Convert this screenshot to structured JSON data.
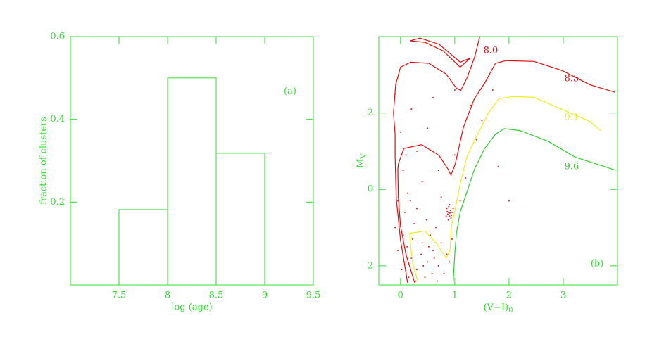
{
  "chart_data": [
    {
      "type": "histogram",
      "xlabel": "log (age)",
      "ylabel": "fraction of clusters",
      "panel_label": "(a)",
      "bins": [
        7.5,
        8,
        8.5,
        9
      ],
      "values": [
        0.182,
        0.5,
        0.318
      ],
      "color": "#33dd33",
      "xlim": [
        7,
        9.5
      ],
      "xticks": [
        7.5,
        8,
        8.5,
        9,
        9.5
      ],
      "ylim": [
        0,
        0.6
      ],
      "yticks": [
        0.2,
        0.4,
        0.6
      ]
    },
    {
      "type": "line",
      "xlabel": {
        "text": "(V−I)",
        "sub": "0"
      },
      "ylabel": {
        "text": "M",
        "sub": "V"
      },
      "panel_label": "(b)",
      "xlim": [
        -0.4,
        4
      ],
      "xticks": [
        0,
        1,
        2,
        3
      ],
      "ylim": [
        2.5,
        -4
      ],
      "yticks": [
        -2,
        0,
        2
      ],
      "series": [
        {
          "name": "8.0",
          "color": "#dd1111",
          "x": [
            0.13,
            0,
            -0.08,
            -0.1,
            -0.1,
            -0.13,
            -0.09,
            0,
            0.19,
            0.52,
            0.84,
            1.03,
            1.11,
            1.23,
            1.37,
            1.46,
            null,
            0.18,
            0.45,
            0.78,
            1.1,
            1.29,
            1.1,
            0.71,
            0.36,
            0.18
          ],
          "y": [
            2.44,
            1.33,
            0.22,
            -0.89,
            -1.44,
            -2.0,
            -2.74,
            -3.2,
            -3.33,
            -3.3,
            -3.02,
            -2.65,
            -2.59,
            -2.93,
            -3.48,
            -4.0,
            null,
            -3.89,
            -3.85,
            -3.63,
            -3.2,
            -3.44,
            -3.33,
            -3.8,
            -3.96,
            -3.89
          ]
        },
        {
          "name": "8.5",
          "color": "#dd1111",
          "x": [
            0.26,
            0.1,
            0,
            -0.04,
            -0.05,
            -0.04,
            0.06,
            0.39,
            0.71,
            0.88,
            0.93,
            1.01,
            1.16,
            1.36,
            1.55,
            1.75,
            1.94,
            2.46,
            2.98,
            3.49,
            3.96
          ],
          "y": [
            2.44,
            1.7,
            0.96,
            0.22,
            -0.52,
            -0.67,
            -1.07,
            -1.17,
            -0.89,
            -0.52,
            -0.37,
            -0.67,
            -1.63,
            -2.37,
            -2.78,
            -3.3,
            -3.37,
            -3.35,
            -3.11,
            -2.74,
            -2.54
          ]
        },
        {
          "name": "9.1",
          "color": "#eeee22",
          "x": [
            0.32,
            0.23,
            0.19,
            0.17,
            0.45,
            0.67,
            0.84,
            0.91,
            0.94,
            1.01,
            1.1,
            1.23,
            1.42,
            1.62,
            1.81,
            2.07,
            2.46,
            2.98,
            3.49,
            3.69
          ],
          "y": [
            2.41,
            1.98,
            1.52,
            1.15,
            1.09,
            1.43,
            1.8,
            1.61,
            0.96,
            0.5,
            -0.15,
            -0.89,
            -1.44,
            -2.0,
            -2.37,
            -2.43,
            -2.41,
            -2.09,
            -1.78,
            -1.54
          ]
        },
        {
          "name": "9.6",
          "color": "#33cc33",
          "x": [
            0.97,
            1.0,
            1.03,
            1.1,
            1.23,
            1.36,
            1.55,
            1.75,
            1.91,
            2.2,
            2.72,
            3.21,
            3.97
          ],
          "y": [
            2.44,
            1.7,
            1.15,
            0.59,
            0.04,
            -0.52,
            -1.07,
            -1.44,
            -1.59,
            -1.54,
            -1.26,
            -0.85,
            -0.5
          ]
        }
      ],
      "scatter": {
        "color": "#dd2222",
        "x": [
          0.05,
          0.12,
          0.2,
          0.3,
          0.4,
          0.5,
          0.15,
          0.25,
          0.35,
          0.6,
          0.7,
          0.45,
          0.08,
          0.18,
          0.3,
          0.55,
          0.65,
          0.75,
          0.85,
          0.1,
          0.22,
          0.38,
          0.48,
          0.58,
          0.68,
          0.02,
          -0.05,
          -0.1,
          0.28,
          0.42,
          0.52,
          0.62,
          0.8,
          0.9,
          0.95,
          0.13,
          0.05,
          0.1,
          0,
          -0.05,
          0.85,
          0.88,
          0.9,
          0.92,
          0.87,
          0.95,
          0.89,
          0.93,
          0.86,
          0.91,
          0.84,
          0.97,
          0.9,
          0.88,
          0.94,
          1.1,
          1.2,
          1.0,
          0.7,
          0.5,
          1.5,
          1.3,
          1.8,
          0.6,
          1.0,
          -0.1,
          1.7,
          2.0,
          0.4,
          0.75,
          1.05,
          0.3,
          1.4,
          0.2
        ],
        "y": [
          1.2,
          1.5,
          1.8,
          2.1,
          1.4,
          1.9,
          2.3,
          0.9,
          1.1,
          1.6,
          2.0,
          2.3,
          0.6,
          0.3,
          0.5,
          1.2,
          1.0,
          1.4,
          1.7,
          1.9,
          1.3,
          1.7,
          0.8,
          2.2,
          2.4,
          2.1,
          1.6,
          1.0,
          2.4,
          2.0,
          1.5,
          1.8,
          2.2,
          1.9,
          1.3,
          0.1,
          -0.5,
          -0.9,
          -1.5,
          0.3,
          0.5,
          0.6,
          0.7,
          0.55,
          0.65,
          0.6,
          0.45,
          0.75,
          0.58,
          0.62,
          0.7,
          0.5,
          0.4,
          0.8,
          0.68,
          0.3,
          -0.3,
          -0.9,
          -0.5,
          -1.6,
          -1.8,
          -2.2,
          -0.6,
          -2.4,
          -2.6,
          -2.5,
          -2.6,
          0.3,
          -0.2,
          0.2,
          1.0,
          -1.0,
          -1.3,
          -2.1
        ]
      }
    }
  ]
}
